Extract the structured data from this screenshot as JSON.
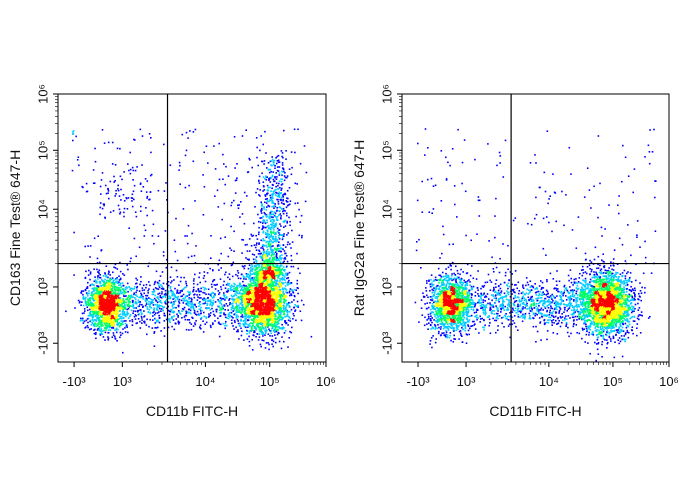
{
  "chart_data": [
    {
      "type": "scatter",
      "subtype": "flow-cytometry-density-dot-plot",
      "xlabel": "CD11b FITC-H",
      "ylabel": "CD163 Fine Test® 647-H",
      "x_scale": "biexponential",
      "y_scale": "biexponential",
      "x_ticks": [
        "-10³",
        "10³",
        "10⁴",
        "10⁵",
        "10⁶"
      ],
      "y_ticks": [
        "-10³",
        "10³",
        "10⁴",
        "10⁵",
        "10⁶"
      ],
      "quadrant_gate": {
        "x": 3500,
        "y": 2000
      },
      "populations": [
        {
          "name": "CD11b- cluster",
          "x_center": 300,
          "y_center": 400
        },
        {
          "name": "CD11b+ cluster",
          "x_center": 80000,
          "y_center": 500
        },
        {
          "name": "CD11b+ CD163+ tail",
          "x_center": 120000,
          "y_range": [
            2000,
            80000
          ]
        }
      ]
    },
    {
      "type": "scatter",
      "subtype": "flow-cytometry-density-dot-plot",
      "xlabel": "CD11b FITC-H",
      "ylabel": "Rat IgG2a Fine Test® 647-H",
      "x_scale": "biexponential",
      "y_scale": "biexponential",
      "x_ticks": [
        "-10³",
        "10³",
        "10⁴",
        "10⁵",
        "10⁶"
      ],
      "y_ticks": [
        "-10³",
        "10³",
        "10⁴",
        "10⁵",
        "10⁶"
      ],
      "quadrant_gate": {
        "x": 3500,
        "y": 2000
      },
      "populations": [
        {
          "name": "CD11b- cluster",
          "x_center": 300,
          "y_center": 400
        },
        {
          "name": "CD11b+ cluster",
          "x_center": 80000,
          "y_center": 450
        }
      ]
    }
  ],
  "colors": {
    "low": "#0000ff",
    "mid": "#00ccff",
    "mid2": "#00ff66",
    "high": "#ffff00",
    "peak": "#ff0000",
    "axis": "#000000"
  }
}
